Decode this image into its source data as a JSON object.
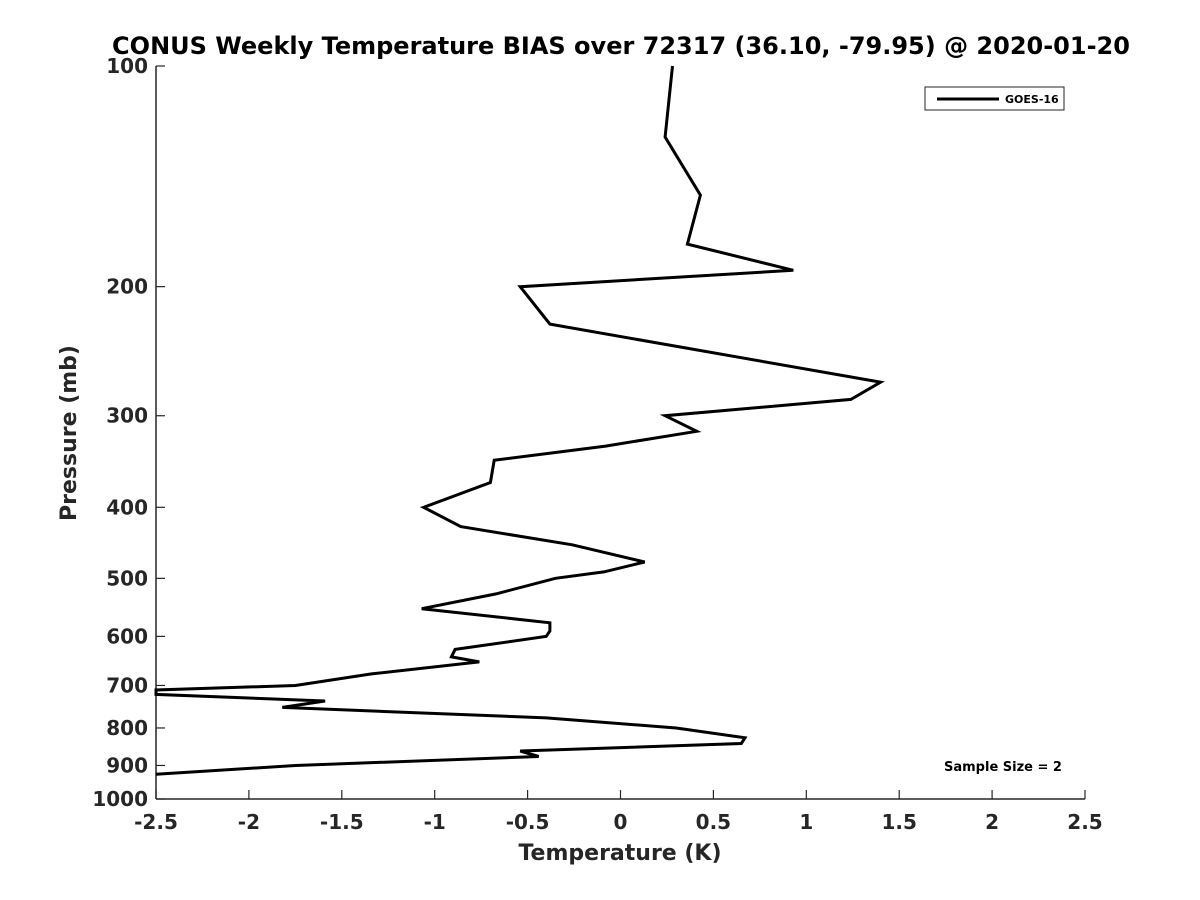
{
  "chart_data": {
    "type": "line",
    "title": "CONUS Weekly Temperature BIAS over 72317 (36.10, -79.95) @ 2020-01-20",
    "xlabel": "Temperature (K)",
    "ylabel": "Pressure (mb)",
    "xlim": [
      -2.5,
      2.5
    ],
    "ylim": [
      100,
      1000
    ],
    "y_scale": "log",
    "y_reversed": true,
    "grid": false,
    "legend_position": "top-right",
    "x_ticks": [
      "-2.5",
      "-2",
      "-1.5",
      "-1",
      "-0.5",
      "0",
      "0.5",
      "1",
      "1.5",
      "2",
      "2.5"
    ],
    "x_tick_values": [
      -2.5,
      -2,
      -1.5,
      -1,
      -0.5,
      0,
      0.5,
      1,
      1.5,
      2,
      2.5
    ],
    "y_ticks": [
      "100",
      "200",
      "300",
      "400",
      "500",
      "600",
      "700",
      "800",
      "900",
      "1000"
    ],
    "y_tick_values": [
      100,
      200,
      300,
      400,
      500,
      600,
      700,
      800,
      900,
      1000
    ],
    "series": [
      {
        "name": "GOES-16",
        "color": "#000000",
        "points": [
          {
            "x": 0.28,
            "p": 100
          },
          {
            "x": 0.24,
            "p": 125
          },
          {
            "x": 0.43,
            "p": 150
          },
          {
            "x": 0.36,
            "p": 175
          },
          {
            "x": 0.93,
            "p": 190
          },
          {
            "x": -0.54,
            "p": 200
          },
          {
            "x": -0.38,
            "p": 225
          },
          {
            "x": 1.4,
            "p": 270
          },
          {
            "x": 1.24,
            "p": 285
          },
          {
            "x": 0.24,
            "p": 300
          },
          {
            "x": 0.41,
            "p": 315
          },
          {
            "x": -0.08,
            "p": 330
          },
          {
            "x": -0.68,
            "p": 345
          },
          {
            "x": -0.7,
            "p": 370
          },
          {
            "x": -1.06,
            "p": 400
          },
          {
            "x": -0.86,
            "p": 425
          },
          {
            "x": -0.26,
            "p": 450
          },
          {
            "x": 0.13,
            "p": 475
          },
          {
            "x": -0.09,
            "p": 490
          },
          {
            "x": -0.35,
            "p": 500
          },
          {
            "x": -0.67,
            "p": 525
          },
          {
            "x": -1.07,
            "p": 550
          },
          {
            "x": -0.38,
            "p": 575
          },
          {
            "x": -0.38,
            "p": 590
          },
          {
            "x": -0.4,
            "p": 600
          },
          {
            "x": -0.89,
            "p": 625
          },
          {
            "x": -0.91,
            "p": 640
          },
          {
            "x": -0.76,
            "p": 650
          },
          {
            "x": -1.34,
            "p": 675
          },
          {
            "x": -1.75,
            "p": 700
          },
          {
            "x": -2.5,
            "p": 710
          },
          {
            "x": -2.5,
            "p": 720
          },
          {
            "x": -1.59,
            "p": 735
          },
          {
            "x": -1.82,
            "p": 750
          },
          {
            "x": -0.4,
            "p": 775
          },
          {
            "x": 0.3,
            "p": 800
          },
          {
            "x": 0.67,
            "p": 825
          },
          {
            "x": 0.65,
            "p": 840
          },
          {
            "x": -0.54,
            "p": 860
          },
          {
            "x": -0.44,
            "p": 875
          },
          {
            "x": -1.75,
            "p": 900
          },
          {
            "x": -2.5,
            "p": 925
          }
        ]
      }
    ],
    "annotations": [
      {
        "text": "Sample Size = 2",
        "position": "bottom-right"
      }
    ]
  }
}
